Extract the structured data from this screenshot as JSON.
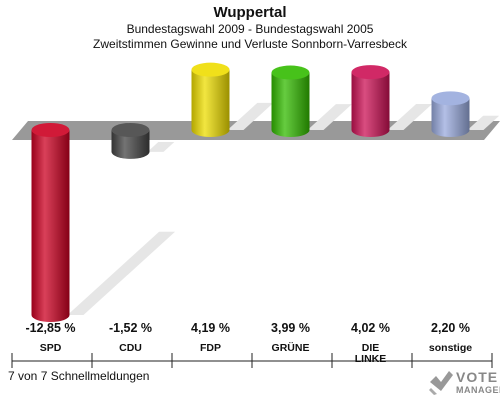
{
  "header": {
    "title": "Wuppertal",
    "subtitle1": "Bundestagswahl 2009 - Bundestagswahl 2005",
    "subtitle2": "Zweitstimmen Gewinne und Verluste Sonnborn-Varresbeck"
  },
  "chart_data": {
    "type": "bar",
    "categories": [
      "SPD",
      "CDU",
      "FDP",
      "GRÜNE",
      "DIE LINKE",
      "sonstige"
    ],
    "category_lines": [
      [
        "SPD"
      ],
      [
        "CDU"
      ],
      [
        "FDP"
      ],
      [
        "GRÜNE"
      ],
      [
        "DIE",
        "LINKE"
      ],
      [
        "sonstige"
      ]
    ],
    "values": [
      -12.85,
      -1.52,
      4.19,
      3.99,
      4.02,
      2.2
    ],
    "value_labels": [
      "-12,85 %",
      "-1,52 %",
      "4,19 %",
      "3,99 %",
      "4,02 %",
      "2,20 %"
    ],
    "colors": [
      "#cc0022",
      "#444444",
      "#eedd00",
      "#33bb00",
      "#cc1155",
      "#99aadd"
    ],
    "ylim": [
      -12.85,
      4.19
    ],
    "grid": false,
    "legend": "none"
  },
  "footer": {
    "note": "7 von 7 Schnellmeldungen"
  },
  "logo": {
    "line1": "VOTE",
    "line2": "MANAGER"
  }
}
